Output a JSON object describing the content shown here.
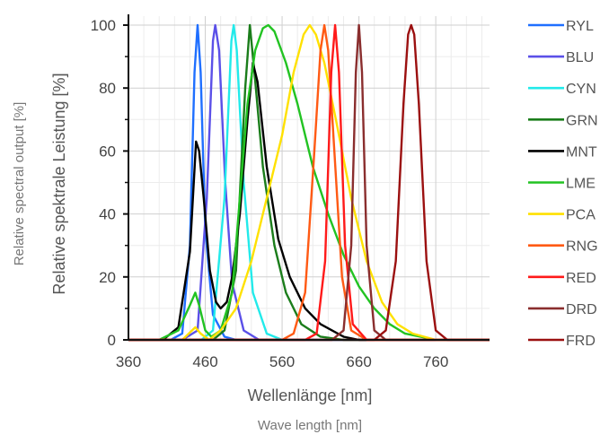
{
  "chart_data": {
    "type": "line",
    "xlabel": "Wellenlänge [nm]",
    "xlabel_secondary": "Wave length [nm]",
    "ylabel": "Relative spektrale Leistung [%]",
    "ylabel_secondary": "Relative spectral output [%]",
    "xlim": [
      360,
      830
    ],
    "ylim": [
      0,
      100
    ],
    "x_ticks": [
      360,
      460,
      560,
      660,
      760
    ],
    "y_ticks": [
      0,
      20,
      40,
      60,
      80,
      100
    ],
    "grid": true,
    "legend_position": "right",
    "series": [
      {
        "name": "RYL",
        "color": "#1f6fff",
        "points": [
          [
            360,
            0
          ],
          [
            415,
            0
          ],
          [
            430,
            2
          ],
          [
            440,
            30
          ],
          [
            446,
            85
          ],
          [
            450,
            100
          ],
          [
            454,
            85
          ],
          [
            460,
            35
          ],
          [
            470,
            8
          ],
          [
            485,
            1
          ],
          [
            500,
            0
          ],
          [
            830,
            0
          ]
        ]
      },
      {
        "name": "BLU",
        "color": "#5b50e8",
        "points": [
          [
            360,
            0
          ],
          [
            430,
            0
          ],
          [
            450,
            3
          ],
          [
            462,
            45
          ],
          [
            470,
            95
          ],
          [
            473,
            100
          ],
          [
            478,
            92
          ],
          [
            486,
            50
          ],
          [
            495,
            18
          ],
          [
            510,
            3
          ],
          [
            530,
            0
          ],
          [
            830,
            0
          ]
        ]
      },
      {
        "name": "CYN",
        "color": "#22eaea",
        "points": [
          [
            360,
            0
          ],
          [
            455,
            0
          ],
          [
            470,
            3
          ],
          [
            485,
            45
          ],
          [
            494,
            95
          ],
          [
            497,
            100
          ],
          [
            501,
            92
          ],
          [
            510,
            50
          ],
          [
            522,
            15
          ],
          [
            540,
            2
          ],
          [
            560,
            0
          ],
          [
            830,
            0
          ]
        ]
      },
      {
        "name": "GRN",
        "color": "#1b7d1b",
        "points": [
          [
            360,
            0
          ],
          [
            470,
            0
          ],
          [
            485,
            3
          ],
          [
            500,
            22
          ],
          [
            512,
            80
          ],
          [
            518,
            100
          ],
          [
            524,
            85
          ],
          [
            535,
            55
          ],
          [
            550,
            30
          ],
          [
            565,
            15
          ],
          [
            585,
            5
          ],
          [
            610,
            1
          ],
          [
            640,
            0
          ],
          [
            830,
            0
          ]
        ]
      },
      {
        "name": "MNT",
        "color": "#000000",
        "points": [
          [
            360,
            0
          ],
          [
            405,
            0
          ],
          [
            425,
            4
          ],
          [
            440,
            28
          ],
          [
            448,
            63
          ],
          [
            452,
            60
          ],
          [
            458,
            45
          ],
          [
            466,
            22
          ],
          [
            474,
            12
          ],
          [
            480,
            10
          ],
          [
            488,
            12
          ],
          [
            495,
            20
          ],
          [
            505,
            40
          ],
          [
            515,
            70
          ],
          [
            522,
            88
          ],
          [
            528,
            82
          ],
          [
            540,
            55
          ],
          [
            555,
            32
          ],
          [
            570,
            20
          ],
          [
            590,
            10
          ],
          [
            610,
            5
          ],
          [
            640,
            1
          ],
          [
            660,
            0
          ],
          [
            830,
            0
          ]
        ]
      },
      {
        "name": "LME",
        "color": "#22c322",
        "points": [
          [
            360,
            0
          ],
          [
            400,
            0
          ],
          [
            425,
            3
          ],
          [
            440,
            11
          ],
          [
            447,
            15
          ],
          [
            452,
            11
          ],
          [
            460,
            3
          ],
          [
            468,
            1
          ],
          [
            480,
            3
          ],
          [
            495,
            15
          ],
          [
            505,
            45
          ],
          [
            515,
            75
          ],
          [
            525,
            92
          ],
          [
            535,
            99
          ],
          [
            542,
            100
          ],
          [
            550,
            98
          ],
          [
            565,
            88
          ],
          [
            580,
            75
          ],
          [
            600,
            55
          ],
          [
            620,
            40
          ],
          [
            640,
            27
          ],
          [
            660,
            17
          ],
          [
            680,
            10
          ],
          [
            700,
            5
          ],
          [
            720,
            2
          ],
          [
            760,
            0
          ],
          [
            830,
            0
          ]
        ]
      },
      {
        "name": "PCA",
        "color": "#ffe100",
        "points": [
          [
            360,
            0
          ],
          [
            430,
            0
          ],
          [
            447,
            4
          ],
          [
            454,
            2
          ],
          [
            465,
            0
          ],
          [
            480,
            3
          ],
          [
            500,
            10
          ],
          [
            520,
            25
          ],
          [
            540,
            45
          ],
          [
            560,
            65
          ],
          [
            575,
            85
          ],
          [
            588,
            97
          ],
          [
            596,
            100
          ],
          [
            604,
            97
          ],
          [
            615,
            88
          ],
          [
            630,
            70
          ],
          [
            650,
            45
          ],
          [
            670,
            25
          ],
          [
            690,
            12
          ],
          [
            710,
            5
          ],
          [
            730,
            2
          ],
          [
            760,
            0
          ],
          [
            830,
            0
          ]
        ]
      },
      {
        "name": "RNG",
        "color": "#ff5a14",
        "points": [
          [
            360,
            0
          ],
          [
            560,
            0
          ],
          [
            575,
            2
          ],
          [
            590,
            15
          ],
          [
            602,
            60
          ],
          [
            610,
            92
          ],
          [
            615,
            100
          ],
          [
            620,
            92
          ],
          [
            628,
            60
          ],
          [
            638,
            20
          ],
          [
            650,
            3
          ],
          [
            670,
            0
          ],
          [
            830,
            0
          ]
        ]
      },
      {
        "name": "RED",
        "color": "#ff1a1a",
        "points": [
          [
            360,
            0
          ],
          [
            590,
            0
          ],
          [
            605,
            2
          ],
          [
            616,
            25
          ],
          [
            624,
            85
          ],
          [
            629,
            100
          ],
          [
            634,
            85
          ],
          [
            642,
            30
          ],
          [
            652,
            5
          ],
          [
            670,
            0
          ],
          [
            830,
            0
          ]
        ]
      },
      {
        "name": "DRD",
        "color": "#8a2e2e",
        "points": [
          [
            360,
            0
          ],
          [
            625,
            0
          ],
          [
            640,
            3
          ],
          [
            650,
            30
          ],
          [
            656,
            85
          ],
          [
            660,
            100
          ],
          [
            664,
            85
          ],
          [
            670,
            30
          ],
          [
            680,
            3
          ],
          [
            695,
            0
          ],
          [
            830,
            0
          ]
        ]
      },
      {
        "name": "FRD",
        "color": "#9b1010",
        "points": [
          [
            360,
            0
          ],
          [
            680,
            0
          ],
          [
            695,
            3
          ],
          [
            708,
            25
          ],
          [
            718,
            75
          ],
          [
            724,
            97
          ],
          [
            728,
            100
          ],
          [
            732,
            97
          ],
          [
            738,
            75
          ],
          [
            748,
            25
          ],
          [
            760,
            3
          ],
          [
            775,
            0
          ],
          [
            830,
            0
          ]
        ]
      }
    ]
  }
}
